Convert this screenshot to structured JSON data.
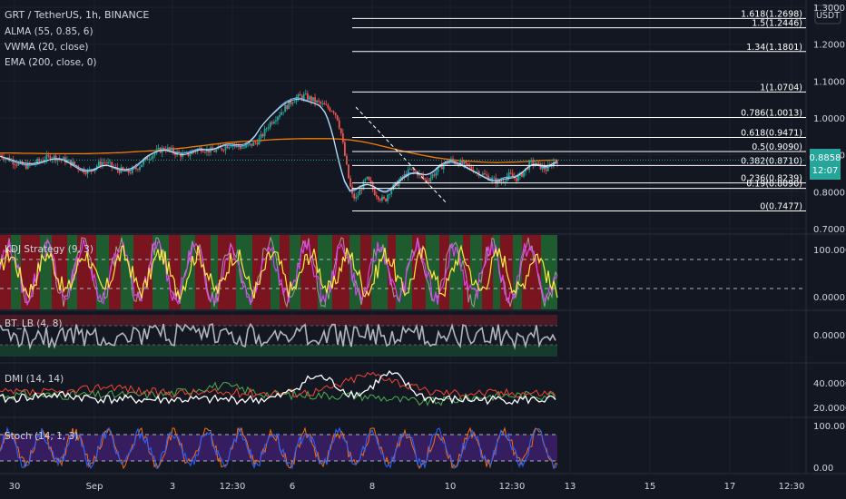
{
  "chart_data": {
    "type": "candlestick",
    "symbol_line": "GRT / TetherUS, 1h, BINANCE",
    "indicators_main": [
      "ALMA (55, 0.85, 6)",
      "VWMA (20, close)",
      "EMA (200, close, 0)"
    ],
    "currency_button": "USDT",
    "price_axis_ticks": [
      "1.3000",
      "1.2000",
      "1.1000",
      "1.0000",
      "0.9000",
      "0.8000",
      "0.7000"
    ],
    "price_range": [
      0.69,
      1.31
    ],
    "current_price": {
      "value": "0.8858",
      "countdown": "12:07"
    },
    "fib_levels": [
      {
        "label": "1.618(1.2698)",
        "price": 1.2698
      },
      {
        "label": "1.5(1.2446)",
        "price": 1.2446
      },
      {
        "label": "1.34(1.1801)",
        "price": 1.1801
      },
      {
        "label": "1(1.0704)",
        "price": 1.0704
      },
      {
        "label": "0.786(1.0013)",
        "price": 1.0013
      },
      {
        "label": "0.618(0.9471)",
        "price": 0.9471
      },
      {
        "label": "0.5(0.9090)",
        "price": 0.909
      },
      {
        "label": "0.382(0.8710)",
        "price": 0.871
      },
      {
        "label": "0.236(0.8239)",
        "price": 0.8239
      },
      {
        "label": "0.19(0.8090)",
        "price": 0.809
      },
      {
        "label": "0(0.7477)",
        "price": 0.7477
      }
    ],
    "price_series": [
      0.9,
      0.895,
      0.89,
      0.885,
      0.88,
      0.875,
      0.872,
      0.87,
      0.872,
      0.875,
      0.88,
      0.885,
      0.89,
      0.892,
      0.895,
      0.893,
      0.89,
      0.887,
      0.885,
      0.88,
      0.875,
      0.868,
      0.862,
      0.858,
      0.855,
      0.86,
      0.868,
      0.875,
      0.88,
      0.878,
      0.872,
      0.865,
      0.86,
      0.858,
      0.855,
      0.853,
      0.856,
      0.862,
      0.87,
      0.88,
      0.89,
      0.897,
      0.903,
      0.91,
      0.914,
      0.918,
      0.914,
      0.91,
      0.906,
      0.902,
      0.898,
      0.9,
      0.905,
      0.91,
      0.915,
      0.918,
      0.915,
      0.912,
      0.91,
      0.913,
      0.915,
      0.92,
      0.925,
      0.93,
      0.928,
      0.924,
      0.92,
      0.92,
      0.925,
      0.93,
      0.935,
      0.945,
      0.96,
      0.978,
      0.99,
      1.0,
      1.01,
      1.02,
      1.03,
      1.04,
      1.05,
      1.055,
      1.058,
      1.06,
      1.055,
      1.05,
      1.045,
      1.04,
      1.035,
      1.03,
      1.025,
      1.02,
      1.0,
      0.96,
      0.9,
      0.84,
      0.79,
      0.78,
      0.8,
      0.82,
      0.835,
      0.82,
      0.8,
      0.79,
      0.78,
      0.775,
      0.8,
      0.81,
      0.82,
      0.83,
      0.84,
      0.85,
      0.86,
      0.855,
      0.85,
      0.84,
      0.83,
      0.835,
      0.845,
      0.855,
      0.865,
      0.875,
      0.88,
      0.885,
      0.88,
      0.878,
      0.876,
      0.87,
      0.865,
      0.86,
      0.855,
      0.85,
      0.845,
      0.84,
      0.835,
      0.83,
      0.825,
      0.83,
      0.84,
      0.845,
      0.84,
      0.835,
      0.845,
      0.855,
      0.87,
      0.88,
      0.875,
      0.87,
      0.865,
      0.86,
      0.87,
      0.88,
      0.885
    ],
    "ema200_series": [
      0.905,
      0.905,
      0.904,
      0.904,
      0.903,
      0.903,
      0.903,
      0.903,
      0.904,
      0.905,
      0.906,
      0.908,
      0.91,
      0.912,
      0.915,
      0.918,
      0.922,
      0.926,
      0.93,
      0.934,
      0.936,
      0.938,
      0.94,
      0.942,
      0.943,
      0.944,
      0.944,
      0.944,
      0.943,
      0.94,
      0.935,
      0.928,
      0.92,
      0.912,
      0.905,
      0.898,
      0.892,
      0.888,
      0.884,
      0.882,
      0.88,
      0.879,
      0.88,
      0.881,
      0.883,
      0.885,
      0.886
    ],
    "ma_series": [
      0.896,
      0.89,
      0.884,
      0.878,
      0.874,
      0.872,
      0.874,
      0.878,
      0.884,
      0.889,
      0.89,
      0.886,
      0.878,
      0.868,
      0.86,
      0.858,
      0.862,
      0.87,
      0.872,
      0.866,
      0.86,
      0.856,
      0.858,
      0.868,
      0.882,
      0.896,
      0.906,
      0.912,
      0.914,
      0.91,
      0.905,
      0.904,
      0.908,
      0.914,
      0.916,
      0.914,
      0.915,
      0.92,
      0.926,
      0.926,
      0.923,
      0.924,
      0.932,
      0.95,
      0.975,
      0.995,
      1.012,
      1.028,
      1.042,
      1.05,
      1.055,
      1.052,
      1.046,
      1.04,
      1.032,
      1.01,
      0.96,
      0.89,
      0.83,
      0.8,
      0.805,
      0.815,
      0.82,
      0.815,
      0.805,
      0.8,
      0.81,
      0.826,
      0.84,
      0.85,
      0.852,
      0.848,
      0.845,
      0.852,
      0.866,
      0.876,
      0.88,
      0.876,
      0.87,
      0.862,
      0.854,
      0.846,
      0.838,
      0.832,
      0.832,
      0.838,
      0.84,
      0.842,
      0.852,
      0.866,
      0.874,
      0.87,
      0.864,
      0.87,
      0.88
    ],
    "kdj_panel": {
      "label": "KDJ Strategy (9, 3)",
      "ticks": [
        "100.0000",
        "0.0000"
      ],
      "upper": 80,
      "lower": 20
    },
    "bt_lb_panel": {
      "label": "BT_LB (4, 8)",
      "ticks": [
        "0.0000"
      ]
    },
    "dmi_panel": {
      "label": "DMI (14, 14)",
      "ticks": [
        "40.0000",
        "20.0000"
      ]
    },
    "stoch_panel": {
      "label": "Stoch (14, 1, 3)",
      "ticks": [
        "100.00",
        "0.00"
      ],
      "upper": 80,
      "lower": 20
    },
    "time_axis": [
      "30",
      "Sep",
      "3",
      "12:30",
      "6",
      "8",
      "10",
      "12:30",
      "13",
      "15",
      "17",
      "12:30"
    ]
  },
  "colors": {
    "background": "#131722",
    "text": "#d1d4dc",
    "grid": "#1e222d",
    "bull": "#26a69a",
    "bear": "#ef5350",
    "ema": "#f57c00",
    "vwma": "#64b5f6",
    "alma": "#ffffff",
    "fib": "#ffffff",
    "price_tag": "#26a69a",
    "kdj_bull_bg": "#1e5b2e",
    "kdj_bear_bg": "#7a1520",
    "kdj_k": "#ffeb3b",
    "kdj_d": "#e040fb",
    "kdj_j": "#9e9e9e",
    "btlb": "#b2b5be",
    "dmi_plus": "#4caf50",
    "dmi_minus": "#f44336",
    "adx": "#ffffff",
    "stoch_bg": "#3c1f6b",
    "stoch_k": "#2962ff",
    "stoch_d": "#ff6d00"
  }
}
